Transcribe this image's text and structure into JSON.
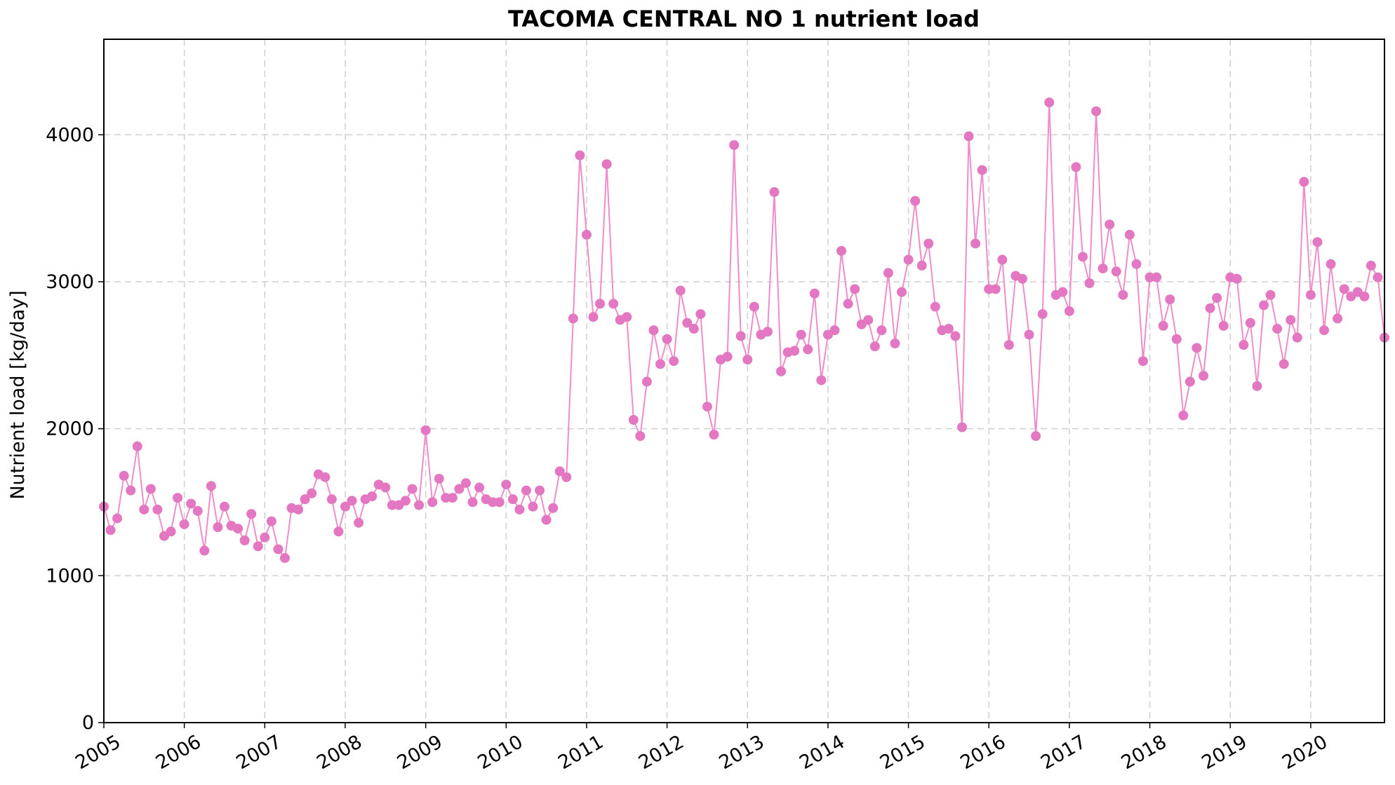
{
  "chart_data": {
    "type": "line",
    "title": "TACOMA CENTRAL NO 1 nutrient load",
    "xlabel": "",
    "ylabel": "Nutrient load [kg/day]",
    "xlim": [
      "2005-01",
      "2020-12"
    ],
    "ylim": [
      0,
      4650
    ],
    "x_ticks": [
      "2005",
      "2006",
      "2007",
      "2008",
      "2009",
      "2010",
      "2011",
      "2012",
      "2013",
      "2014",
      "2015",
      "2016",
      "2017",
      "2018",
      "2019",
      "2020"
    ],
    "y_ticks": [
      0,
      1000,
      2000,
      3000,
      4000
    ],
    "grid": true,
    "line_color": "#f08cc8",
    "marker_color": "#e377c2",
    "series": [
      {
        "x": [
          "2005-01",
          "2005-02",
          "2005-03",
          "2005-04",
          "2005-05",
          "2005-06",
          "2005-07",
          "2005-08",
          "2005-09",
          "2005-10",
          "2005-11",
          "2005-12",
          "2006-01",
          "2006-02",
          "2006-03",
          "2006-04",
          "2006-05",
          "2006-06",
          "2006-07",
          "2006-08",
          "2006-09",
          "2006-10",
          "2006-11",
          "2006-12",
          "2007-01",
          "2007-02",
          "2007-03",
          "2007-04",
          "2007-05",
          "2007-06",
          "2007-07",
          "2007-08",
          "2007-09",
          "2007-10",
          "2007-11",
          "2007-12",
          "2008-01",
          "2008-02",
          "2008-03",
          "2008-04",
          "2008-05",
          "2008-06",
          "2008-07",
          "2008-08",
          "2008-09",
          "2008-10",
          "2008-11",
          "2008-12",
          "2009-01",
          "2009-02",
          "2009-03",
          "2009-04",
          "2009-05",
          "2009-06",
          "2009-07",
          "2009-08",
          "2009-09",
          "2009-10",
          "2009-11",
          "2009-12",
          "2010-01",
          "2010-02",
          "2010-03",
          "2010-04",
          "2010-05",
          "2010-06",
          "2010-07",
          "2010-08",
          "2010-09",
          "2010-10",
          "2010-11",
          "2010-12",
          "2011-01",
          "2011-02",
          "2011-03",
          "2011-04",
          "2011-05",
          "2011-06",
          "2011-07",
          "2011-08",
          "2011-09",
          "2011-10",
          "2011-11",
          "2011-12",
          "2012-01",
          "2012-02",
          "2012-03",
          "2012-04",
          "2012-05",
          "2012-06",
          "2012-07",
          "2012-08",
          "2012-09",
          "2012-10",
          "2012-11",
          "2012-12",
          "2013-01",
          "2013-02",
          "2013-03",
          "2013-04",
          "2013-05",
          "2013-06",
          "2013-07",
          "2013-08",
          "2013-09",
          "2013-10",
          "2013-11",
          "2013-12",
          "2014-01",
          "2014-02",
          "2014-03",
          "2014-04",
          "2014-05",
          "2014-06",
          "2014-07",
          "2014-08",
          "2014-09",
          "2014-10",
          "2014-11",
          "2014-12",
          "2015-01",
          "2015-02",
          "2015-03",
          "2015-04",
          "2015-05",
          "2015-06",
          "2015-07",
          "2015-08",
          "2015-09",
          "2015-10",
          "2015-11",
          "2015-12",
          "2016-01",
          "2016-02",
          "2016-03",
          "2016-04",
          "2016-05",
          "2016-06",
          "2016-07",
          "2016-08",
          "2016-09",
          "2016-10",
          "2016-11",
          "2016-12",
          "2017-01",
          "2017-02",
          "2017-03",
          "2017-04",
          "2017-05",
          "2017-06",
          "2017-07",
          "2017-08",
          "2017-09",
          "2017-10",
          "2017-11",
          "2017-12",
          "2018-01",
          "2018-02",
          "2018-03",
          "2018-04",
          "2018-05",
          "2018-06",
          "2018-07",
          "2018-08",
          "2018-09",
          "2018-10",
          "2018-11",
          "2018-12",
          "2019-01",
          "2019-02",
          "2019-03",
          "2019-04",
          "2019-05",
          "2019-06",
          "2019-07",
          "2019-08",
          "2019-09",
          "2019-10",
          "2019-11",
          "2019-12",
          "2020-01",
          "2020-02",
          "2020-03",
          "2020-04",
          "2020-05",
          "2020-06",
          "2020-07",
          "2020-08",
          "2020-09",
          "2020-10",
          "2020-11",
          "2020-12"
        ],
        "y": [
          1470,
          1310,
          1390,
          1680,
          1580,
          1880,
          1450,
          1590,
          1450,
          1270,
          1300,
          1530,
          1350,
          1490,
          1440,
          1170,
          1610,
          1330,
          1470,
          1340,
          1320,
          1240,
          1420,
          1200,
          1260,
          1370,
          1180,
          1120,
          1460,
          1450,
          1520,
          1560,
          1690,
          1670,
          1520,
          1300,
          1470,
          1510,
          1360,
          1520,
          1540,
          1620,
          1600,
          1480,
          1480,
          1510,
          1590,
          1480,
          1990,
          1500,
          1660,
          1530,
          1530,
          1590,
          1630,
          1500,
          1600,
          1520,
          1500,
          1500,
          1620,
          1520,
          1450,
          1580,
          1470,
          1580,
          1380,
          1460,
          1710,
          1670,
          2750,
          3860,
          3320,
          2760,
          2850,
          3800,
          2850,
          2740,
          2760,
          2060,
          1950,
          2320,
          2670,
          2440,
          2610,
          2460,
          2940,
          2720,
          2680,
          2780,
          2150,
          1960,
          2470,
          2490,
          3930,
          2630,
          2470,
          2830,
          2640,
          2660,
          3610,
          2390,
          2520,
          2530,
          2640,
          2540,
          2920,
          2330,
          2640,
          2670,
          3210,
          2850,
          2950,
          2710,
          2740,
          2560,
          2670,
          3060,
          2580,
          2930,
          3150,
          3550,
          3110,
          3260,
          2830,
          2670,
          2680,
          2630,
          2010,
          3990,
          3260,
          3760,
          2950,
          2950,
          3150,
          2570,
          3040,
          3020,
          2640,
          1950,
          2780,
          4220,
          2910,
          2930,
          2800,
          3780,
          3170,
          2990,
          4160,
          3090,
          3390,
          3070,
          2910,
          3320,
          3120,
          2460,
          3030,
          3030,
          2700,
          2880,
          2610,
          2090,
          2320,
          2550,
          2360,
          2820,
          2890,
          2700,
          3030,
          3020,
          2570,
          2720,
          2290,
          2840,
          2910,
          2680,
          2440,
          2740,
          2620,
          3680,
          2910,
          3270,
          2670,
          3120,
          2750,
          2950,
          2900,
          2930,
          2900,
          3110,
          3030,
          2620
        ]
      }
    ]
  }
}
